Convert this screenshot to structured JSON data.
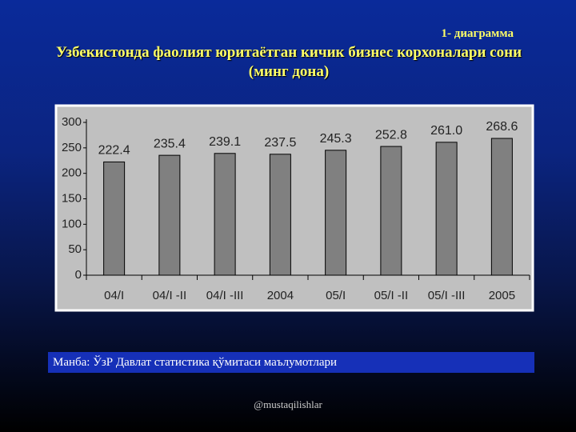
{
  "label": "1- диаграмма",
  "chart_data": {
    "type": "bar",
    "title": "Узбекистонда фаолият юритаётган кичик бизнес корхоналари сони  (минг дона)",
    "categories": [
      "04/I",
      "04/I -II",
      "04/I -III",
      "2004",
      "05/I",
      "05/I -II",
      "05/I -III",
      "2005"
    ],
    "values": [
      222.4,
      235.4,
      239.1,
      237.5,
      245.3,
      252.8,
      261,
      268.6
    ],
    "value_labels": [
      "222.4",
      "235.4",
      "239.1",
      "237.5",
      "245.3",
      "252.8",
      "261.0",
      "268.6"
    ],
    "color": "#808080",
    "ylim": [
      0,
      300
    ],
    "yticks": [
      0,
      50,
      100,
      150,
      200,
      250,
      300
    ],
    "grid": false
  },
  "source": "Манба: ЎзР Давлат статистика қўмитаси маълумотлари",
  "credit": "@mustaqilishlar"
}
